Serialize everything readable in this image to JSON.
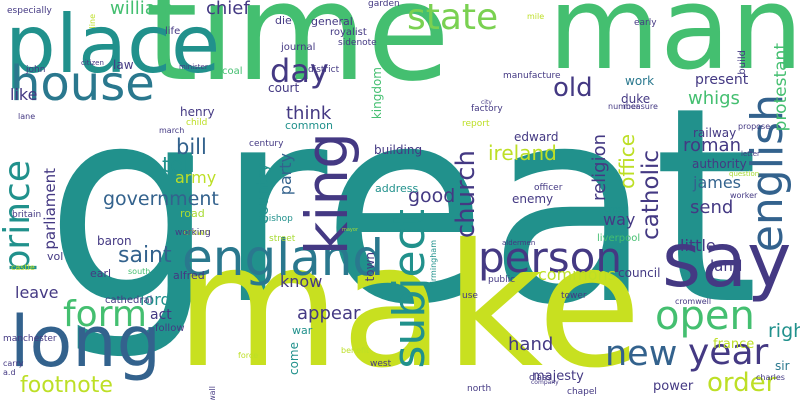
{
  "palette": {
    "navy": "#3b2f7a",
    "indigo": "#443983",
    "blue": "#33628d",
    "steel": "#2a788e",
    "teal": "#21918c",
    "sea": "#22a884",
    "green": "#44bf70",
    "lime": "#7ad151",
    "yellowgreen": "#bddf26",
    "yellow": "#c8e020",
    "pale": "#a8db34"
  },
  "words": [
    {
      "text": "great",
      "color": "teal"
    },
    {
      "text": "make",
      "color": "yellow"
    },
    {
      "text": "time",
      "color": "green"
    },
    {
      "text": "man",
      "color": "green"
    },
    {
      "text": "place",
      "color": "teal"
    },
    {
      "text": "say",
      "color": "indigo"
    },
    {
      "text": "long",
      "color": "blue"
    },
    {
      "text": "house",
      "color": "steel"
    },
    {
      "text": "england",
      "color": "steel"
    },
    {
      "text": "person",
      "color": "indigo"
    },
    {
      "text": "king",
      "color": "indigo"
    },
    {
      "text": "english",
      "color": "blue"
    },
    {
      "text": "subject",
      "color": "teal"
    },
    {
      "text": "prince",
      "color": "teal"
    },
    {
      "text": "form",
      "color": "green"
    },
    {
      "text": "open",
      "color": "green"
    },
    {
      "text": "year",
      "color": "indigo"
    },
    {
      "text": "new",
      "color": "blue"
    },
    {
      "text": "state",
      "color": "lime"
    },
    {
      "text": "day",
      "color": "indigo"
    },
    {
      "text": "old",
      "color": "indigo"
    },
    {
      "text": "footnote",
      "color": "yellowgreen"
    },
    {
      "text": "order",
      "color": "yellowgreen"
    },
    {
      "text": "church",
      "color": "indigo"
    },
    {
      "text": "catholic",
      "color": "indigo"
    },
    {
      "text": "protestant",
      "color": "green"
    },
    {
      "text": "government",
      "color": "blue"
    },
    {
      "text": "saint",
      "color": "blue"
    },
    {
      "text": "bill",
      "color": "blue"
    },
    {
      "text": "tell",
      "color": "teal"
    },
    {
      "text": "william",
      "color": "green"
    },
    {
      "text": "chief",
      "color": "indigo"
    },
    {
      "text": "think",
      "color": "indigo"
    },
    {
      "text": "religion",
      "color": "indigo"
    },
    {
      "text": "ireland",
      "color": "yellowgreen"
    },
    {
      "text": "office",
      "color": "yellowgreen"
    },
    {
      "text": "roman",
      "color": "indigo"
    },
    {
      "text": "james",
      "color": "blue"
    },
    {
      "text": "send",
      "color": "indigo"
    },
    {
      "text": "good",
      "color": "indigo"
    },
    {
      "text": "appear",
      "color": "indigo"
    },
    {
      "text": "hand",
      "color": "indigo"
    },
    {
      "text": "right",
      "color": "teal"
    },
    {
      "text": "leave",
      "color": "indigo"
    },
    {
      "text": "lord",
      "color": "teal"
    },
    {
      "text": "parliament",
      "color": "indigo"
    },
    {
      "text": "country",
      "color": "teal"
    },
    {
      "text": "party",
      "color": "blue"
    },
    {
      "text": "army",
      "color": "yellowgreen"
    },
    {
      "text": "whigs",
      "color": "green"
    },
    {
      "text": "know",
      "color": "indigo"
    },
    {
      "text": "little",
      "color": "indigo"
    },
    {
      "text": "commons",
      "color": "yellowgreen"
    },
    {
      "text": "present",
      "color": "indigo"
    },
    {
      "text": "way",
      "color": "indigo"
    },
    {
      "text": "like",
      "color": "indigo"
    },
    {
      "text": "act",
      "color": "indigo"
    },
    {
      "text": "land",
      "color": "indigo"
    },
    {
      "text": "building",
      "color": "indigo"
    },
    {
      "text": "edward",
      "color": "indigo"
    },
    {
      "text": "enemy",
      "color": "indigo"
    },
    {
      "text": "france",
      "color": "yellowgreen"
    },
    {
      "text": "majesty",
      "color": "indigo"
    },
    {
      "text": "power",
      "color": "indigo"
    },
    {
      "text": "sir",
      "color": "steel"
    },
    {
      "text": "work",
      "color": "steel"
    },
    {
      "text": "duke",
      "color": "indigo"
    },
    {
      "text": "kingdom",
      "color": "green"
    },
    {
      "text": "court",
      "color": "indigo"
    },
    {
      "text": "common",
      "color": "teal"
    },
    {
      "text": "railway",
      "color": "indigo"
    },
    {
      "text": "authority",
      "color": "indigo"
    },
    {
      "text": "council",
      "color": "indigo"
    },
    {
      "text": "general",
      "color": "indigo"
    },
    {
      "text": "die",
      "color": "indigo"
    },
    {
      "text": "journal",
      "color": "indigo"
    },
    {
      "text": "law",
      "color": "indigo"
    },
    {
      "text": "henry",
      "color": "indigo"
    },
    {
      "text": "baron",
      "color": "indigo"
    },
    {
      "text": "bishop",
      "color": "teal"
    },
    {
      "text": "town",
      "color": "indigo"
    },
    {
      "text": "come",
      "color": "teal"
    },
    {
      "text": "war",
      "color": "teal"
    },
    {
      "text": "alfred",
      "color": "indigo"
    },
    {
      "text": "earl",
      "color": "indigo"
    },
    {
      "text": "vol",
      "color": "indigo"
    },
    {
      "text": "cathedral",
      "color": "indigo"
    },
    {
      "text": "follow",
      "color": "indigo"
    },
    {
      "text": "manchester",
      "color": "indigo"
    },
    {
      "text": "crown",
      "color": "yellowgreen"
    },
    {
      "text": "road",
      "color": "pale"
    },
    {
      "text": "working",
      "color": "indigo"
    },
    {
      "text": "address",
      "color": "teal"
    },
    {
      "text": "district",
      "color": "indigo"
    },
    {
      "text": "century",
      "color": "indigo"
    },
    {
      "text": "royalist",
      "color": "indigo"
    },
    {
      "text": "sidenote",
      "color": "indigo"
    },
    {
      "text": "garden",
      "color": "indigo"
    },
    {
      "text": "mile",
      "color": "yellowgreen"
    },
    {
      "text": "early",
      "color": "indigo"
    },
    {
      "text": "build",
      "color": "indigo"
    },
    {
      "text": "manufacture",
      "color": "indigo"
    },
    {
      "text": "factory",
      "color": "indigo"
    },
    {
      "text": "number",
      "color": "indigo"
    },
    {
      "text": "measure",
      "color": "indigo"
    },
    {
      "text": "report",
      "color": "yellowgreen"
    },
    {
      "text": "propose",
      "color": "indigo"
    },
    {
      "text": "letter",
      "color": "indigo"
    },
    {
      "text": "question",
      "color": "pale"
    },
    {
      "text": "worker",
      "color": "indigo"
    },
    {
      "text": "officer",
      "color": "indigo"
    },
    {
      "text": "cross",
      "color": "teal"
    },
    {
      "text": "liverpool",
      "color": "green"
    },
    {
      "text": "street",
      "color": "pale"
    },
    {
      "text": "aldermen",
      "color": "indigo"
    },
    {
      "text": "public",
      "color": "indigo"
    },
    {
      "text": "use",
      "color": "indigo"
    },
    {
      "text": "tower",
      "color": "indigo"
    },
    {
      "text": "cromwell",
      "color": "indigo"
    },
    {
      "text": "class",
      "color": "indigo"
    },
    {
      "text": "company",
      "color": "indigo"
    },
    {
      "text": "chapel",
      "color": "indigo"
    },
    {
      "text": "north",
      "color": "indigo"
    },
    {
      "text": "charles",
      "color": "indigo"
    },
    {
      "text": "west",
      "color": "indigo"
    },
    {
      "text": "benefit",
      "color": "yellowgreen"
    },
    {
      "text": "force",
      "color": "yellowgreen"
    },
    {
      "text": "wall",
      "color": "indigo"
    },
    {
      "text": "carry",
      "color": "indigo"
    },
    {
      "text": "a.d",
      "color": "indigo"
    },
    {
      "text": "castle",
      "color": "yellowgreen"
    },
    {
      "text": "britain",
      "color": "indigo"
    },
    {
      "text": "lane",
      "color": "indigo"
    },
    {
      "text": "john",
      "color": "indigo"
    },
    {
      "text": "citizen",
      "color": "indigo"
    },
    {
      "text": "minister",
      "color": "indigo"
    },
    {
      "text": "coal",
      "color": "green"
    },
    {
      "text": "life",
      "color": "indigo"
    },
    {
      "text": "especially",
      "color": "indigo"
    },
    {
      "text": "line",
      "color": "yellowgreen"
    },
    {
      "text": "child",
      "color": "yellowgreen"
    },
    {
      "text": "march",
      "color": "indigo"
    },
    {
      "text": "south",
      "color": "green"
    },
    {
      "text": "birmingham",
      "color": "teal"
    },
    {
      "text": "city",
      "color": "indigo"
    },
    {
      "text": "mayor",
      "color": "pale"
    }
  ]
}
